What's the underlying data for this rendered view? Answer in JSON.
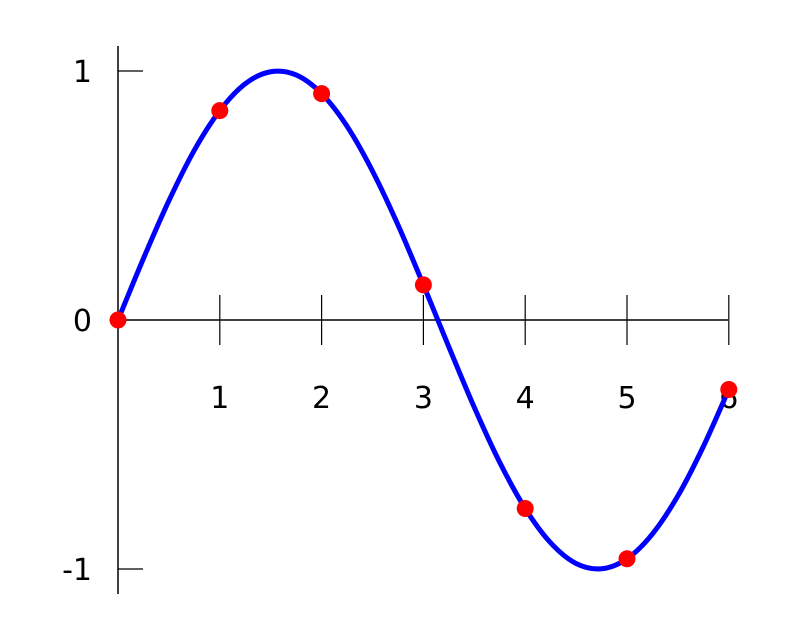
{
  "chart_data": {
    "type": "line",
    "title": "",
    "xlabel": "",
    "ylabel": "",
    "xlim": [
      0,
      6
    ],
    "ylim": [
      -1,
      1
    ],
    "grid": false,
    "x_ticks": [
      "1",
      "2",
      "3",
      "4",
      "5",
      "6"
    ],
    "x_tick_values": [
      1,
      2,
      3,
      4,
      5,
      6
    ],
    "y_ticks": [
      "1",
      "0",
      "-1"
    ],
    "y_tick_values": [
      1,
      0,
      -1
    ],
    "series": [
      {
        "type": "line",
        "color": "#0000ff",
        "x": [
          0,
          0.25,
          0.5,
          0.75,
          1,
          1.25,
          1.5,
          1.75,
          2,
          2.25,
          2.5,
          2.75,
          3,
          3.25,
          3.5,
          3.75,
          4,
          4.25,
          4.5,
          4.75,
          5,
          5.25,
          5.5,
          5.75,
          6
        ],
        "y": [
          0,
          0.247,
          0.479,
          0.682,
          0.841,
          0.949,
          0.997,
          0.984,
          0.909,
          0.778,
          0.598,
          0.382,
          0.141,
          -0.108,
          -0.351,
          -0.572,
          -0.757,
          -0.895,
          -0.978,
          -0.999,
          -0.959,
          -0.859,
          -0.706,
          -0.508,
          -0.279
        ]
      },
      {
        "type": "scatter",
        "color": "#ff0000",
        "x": [
          0,
          1,
          2,
          3,
          4,
          5,
          6
        ],
        "y": [
          0,
          0.841,
          0.909,
          0.141,
          -0.757,
          -0.959,
          -0.279
        ]
      }
    ]
  }
}
